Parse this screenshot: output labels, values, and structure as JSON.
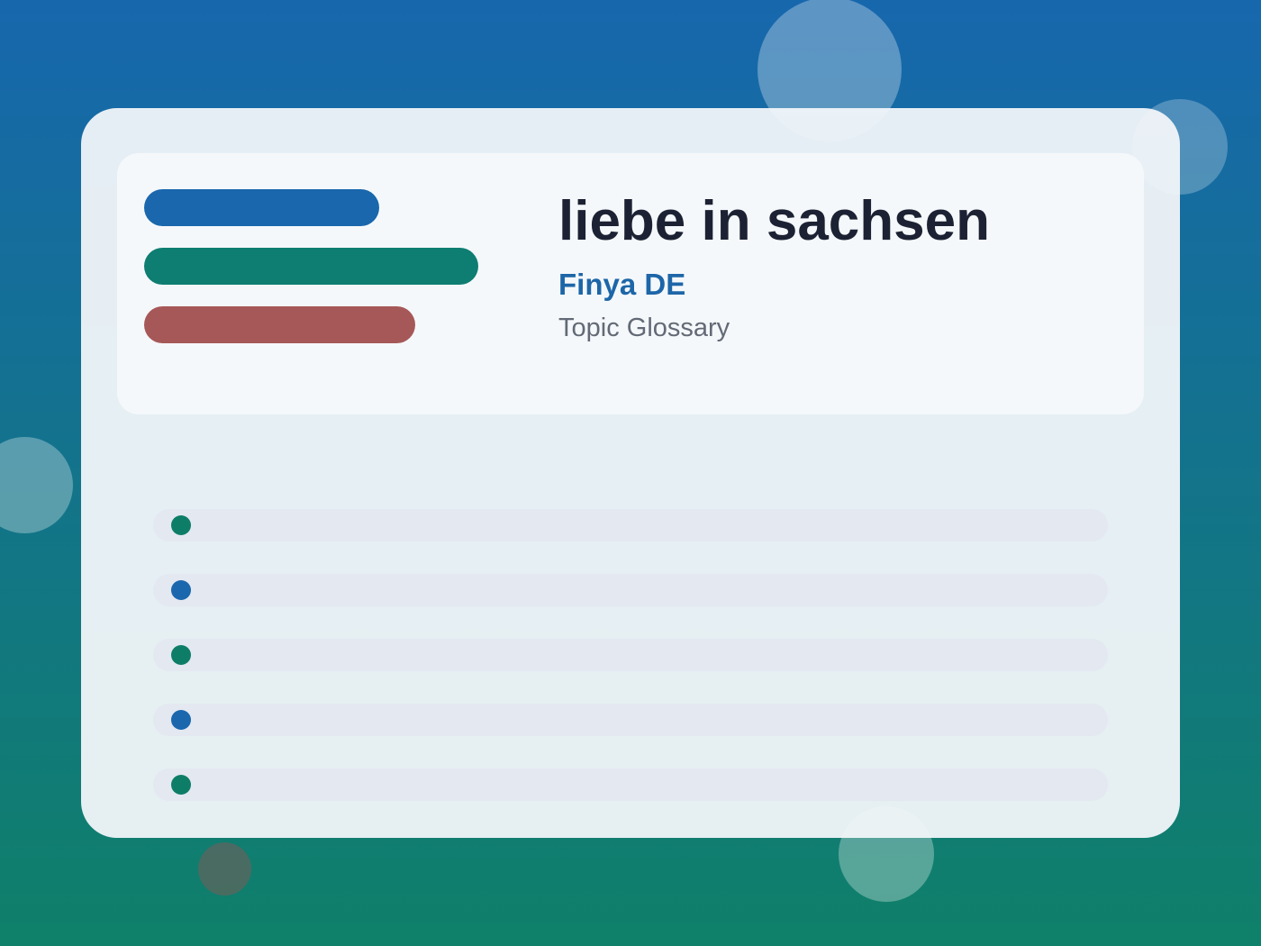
{
  "header": {
    "title": "liebe in sachsen",
    "brand": "Finya DE",
    "subtitle": "Topic Glossary"
  }
}
